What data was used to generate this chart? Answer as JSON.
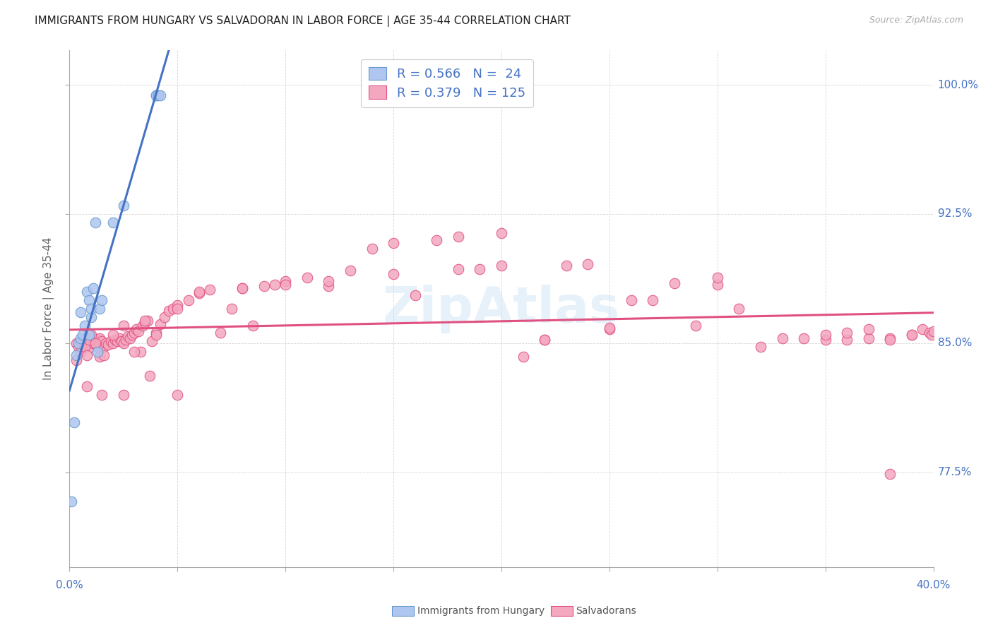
{
  "title": "IMMIGRANTS FROM HUNGARY VS SALVADORAN IN LABOR FORCE | AGE 35-44 CORRELATION CHART",
  "source": "Source: ZipAtlas.com",
  "ylabel_label": "In Labor Force | Age 35-44",
  "watermark": "ZipAtlas",
  "hungary_color": "#aec6f0",
  "hungary_edge": "#6699cc",
  "salvadoran_color": "#f4a8c0",
  "salvadoran_edge": "#e05080",
  "hungary_line_color": "#4472c4",
  "salvadoran_line_color": "#e05080",
  "blue_text_color": "#4472c4",
  "hungary_R": 0.566,
  "salvadoran_R": 0.379,
  "hungary_N": 24,
  "salvadoran_N": 125,
  "xlim": [
    0.0,
    0.4
  ],
  "ylim": [
    0.72,
    1.02
  ],
  "yticks": [
    0.775,
    0.85,
    0.925,
    1.0
  ],
  "ytick_labels": [
    "77.5%",
    "85.0%",
    "92.5%",
    "100.0%"
  ],
  "xtick_labels_left": "0.0%",
  "xtick_labels_right": "40.0%",
  "hungary_x": [
    0.001,
    0.002,
    0.003,
    0.004,
    0.005,
    0.005,
    0.006,
    0.007,
    0.008,
    0.009,
    0.009,
    0.01,
    0.01,
    0.011,
    0.012,
    0.013,
    0.014,
    0.015,
    0.02,
    0.025,
    0.04,
    0.04,
    0.041,
    0.042
  ],
  "hungary_y": [
    0.758,
    0.804,
    0.843,
    0.85,
    0.853,
    0.868,
    0.855,
    0.86,
    0.88,
    0.855,
    0.875,
    0.865,
    0.87,
    0.882,
    0.92,
    0.845,
    0.87,
    0.875,
    0.92,
    0.93,
    0.994,
    0.994,
    0.994,
    0.994
  ],
  "salvadoran_x": [
    0.003,
    0.004,
    0.005,
    0.006,
    0.007,
    0.007,
    0.008,
    0.009,
    0.01,
    0.01,
    0.011,
    0.011,
    0.012,
    0.013,
    0.013,
    0.014,
    0.014,
    0.015,
    0.016,
    0.017,
    0.018,
    0.019,
    0.02,
    0.021,
    0.022,
    0.023,
    0.024,
    0.025,
    0.026,
    0.027,
    0.028,
    0.029,
    0.03,
    0.031,
    0.032,
    0.033,
    0.034,
    0.035,
    0.036,
    0.037,
    0.038,
    0.04,
    0.042,
    0.044,
    0.046,
    0.048,
    0.05,
    0.055,
    0.06,
    0.065,
    0.07,
    0.075,
    0.08,
    0.085,
    0.09,
    0.095,
    0.1,
    0.11,
    0.12,
    0.13,
    0.14,
    0.15,
    0.16,
    0.17,
    0.18,
    0.19,
    0.2,
    0.21,
    0.22,
    0.23,
    0.24,
    0.25,
    0.26,
    0.27,
    0.28,
    0.29,
    0.3,
    0.31,
    0.32,
    0.33,
    0.003,
    0.005,
    0.007,
    0.008,
    0.009,
    0.01,
    0.012,
    0.014,
    0.016,
    0.02,
    0.025,
    0.03,
    0.035,
    0.04,
    0.05,
    0.06,
    0.08,
    0.1,
    0.12,
    0.15,
    0.18,
    0.2,
    0.22,
    0.25,
    0.3,
    0.35,
    0.36,
    0.37,
    0.38,
    0.39,
    0.34,
    0.35,
    0.36,
    0.37,
    0.38,
    0.39,
    0.395,
    0.398,
    0.399,
    0.4,
    0.008,
    0.015,
    0.025,
    0.05,
    0.38
  ],
  "salvadoran_y": [
    0.85,
    0.848,
    0.851,
    0.852,
    0.849,
    0.852,
    0.85,
    0.851,
    0.848,
    0.852,
    0.85,
    0.853,
    0.851,
    0.848,
    0.852,
    0.85,
    0.853,
    0.851,
    0.848,
    0.85,
    0.849,
    0.851,
    0.85,
    0.852,
    0.851,
    0.853,
    0.851,
    0.85,
    0.852,
    0.854,
    0.853,
    0.855,
    0.856,
    0.858,
    0.857,
    0.845,
    0.86,
    0.862,
    0.863,
    0.831,
    0.851,
    0.856,
    0.861,
    0.865,
    0.869,
    0.87,
    0.872,
    0.875,
    0.879,
    0.881,
    0.856,
    0.87,
    0.882,
    0.86,
    0.883,
    0.884,
    0.886,
    0.888,
    0.883,
    0.892,
    0.905,
    0.908,
    0.878,
    0.91,
    0.912,
    0.893,
    0.914,
    0.842,
    0.852,
    0.895,
    0.896,
    0.858,
    0.875,
    0.875,
    0.885,
    0.86,
    0.884,
    0.87,
    0.848,
    0.853,
    0.84,
    0.845,
    0.848,
    0.843,
    0.852,
    0.855,
    0.85,
    0.842,
    0.843,
    0.855,
    0.86,
    0.845,
    0.863,
    0.855,
    0.87,
    0.88,
    0.882,
    0.884,
    0.886,
    0.89,
    0.893,
    0.895,
    0.852,
    0.859,
    0.888,
    0.852,
    0.852,
    0.853,
    0.853,
    0.855,
    0.853,
    0.855,
    0.856,
    0.858,
    0.852,
    0.855,
    0.858,
    0.856,
    0.855,
    0.857,
    0.825,
    0.82,
    0.82,
    0.82,
    0.774
  ]
}
